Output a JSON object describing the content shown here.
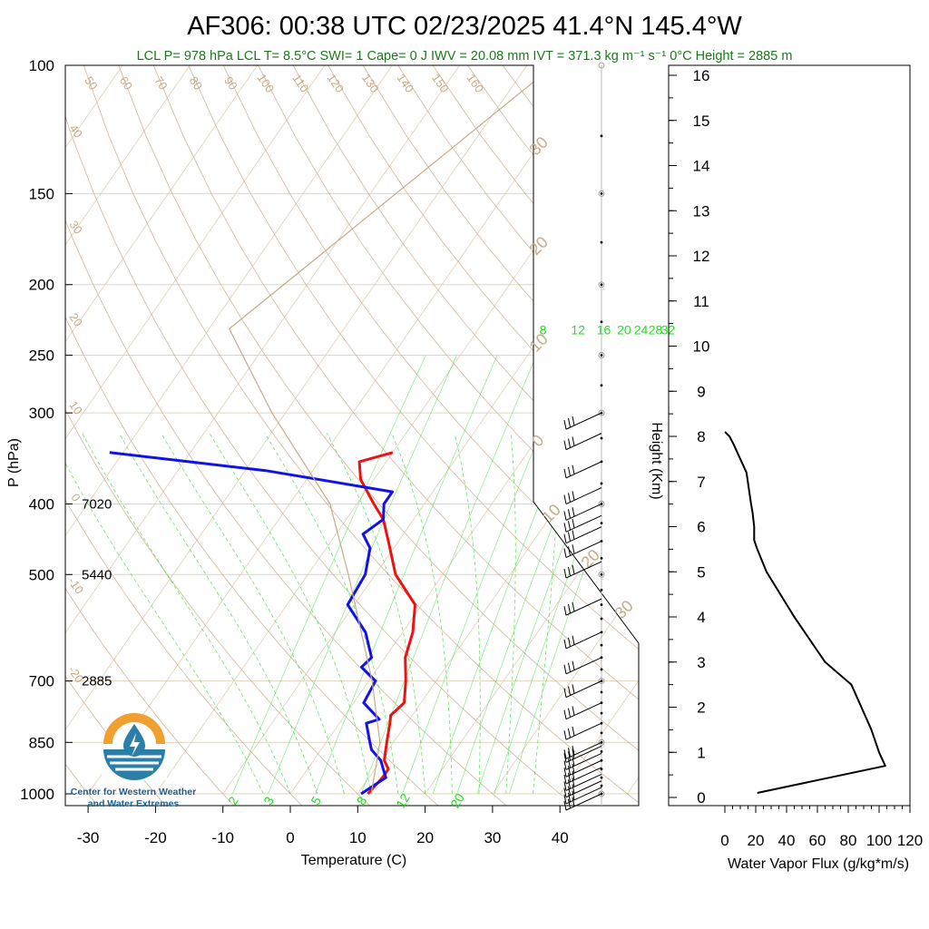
{
  "header": {
    "title": "AF306: 00:38 UTC 02/23/2025  41.4°N 145.4°W",
    "subtitle": "LCL P= 978 hPa  LCL T= 8.5°C  SWI= 1  Cape= 0 J  IWV = 20.08 mm  IVT = 371.3 kg m⁻¹ s⁻¹  0°C Height = 2885 m"
  },
  "logo": {
    "line1": "Center for Western Weather",
    "line2": "and Water Extremes"
  },
  "colors": {
    "temperature": "#ee1111",
    "dewpoint": "#1111ee",
    "dry_adiabat": "#c8aa86",
    "mixing_ratio": "#22dd22"
  },
  "chart_data": [
    {
      "type": "line",
      "chart": "skew-t",
      "xlabel": "Temperature (C)",
      "ylabel": "P (hPa)",
      "xlim": [
        -34,
        50
      ],
      "ylim": [
        1000,
        100
      ],
      "y_scale": "log",
      "x_ticks": [
        "-30",
        "-20",
        "-10",
        "0",
        "10",
        "20",
        "30",
        "40"
      ],
      "y_ticks": [
        "100",
        "150",
        "200",
        "250",
        "300",
        "400",
        "500",
        "700",
        "850",
        "1000"
      ],
      "height_labels": [
        {
          "p": 400,
          "text": "7020"
        },
        {
          "p": 500,
          "text": "5440"
        },
        {
          "p": 700,
          "text": "2885"
        }
      ],
      "mixing_ratio_labels": [
        "8",
        "12",
        "16",
        "20",
        "24",
        "28",
        "32"
      ],
      "mixing_ratio_labels_bottom": [
        "2",
        "3",
        "5",
        "8",
        "12",
        "20"
      ],
      "adiabat_labels_top": [
        "50",
        "60",
        "70",
        "80",
        "90",
        "100",
        "110",
        "120",
        "130",
        "140",
        "150",
        "160"
      ],
      "adiabat_labels_left": [
        "40",
        "30",
        "20",
        "10",
        "0",
        "-10",
        "-20"
      ],
      "adiabat_labels_right": [
        "30",
        "20",
        "10",
        "0",
        "10",
        "20",
        "30"
      ],
      "series": [
        {
          "name": "Temperature",
          "points": [
            [
              1000,
              11.5
            ],
            [
              950,
              12.0
            ],
            [
              925,
              12.0
            ],
            [
              900,
              10.5
            ],
            [
              850,
              9.0
            ],
            [
              800,
              7.5
            ],
            [
              780,
              6.8
            ],
            [
              750,
              7.5
            ],
            [
              700,
              5.5
            ],
            [
              650,
              3.0
            ],
            [
              600,
              1.5
            ],
            [
              550,
              -1.0
            ],
            [
              500,
              -7.0
            ],
            [
              450,
              -11.5
            ],
            [
              420,
              -14.5
            ],
            [
              400,
              -17.5
            ],
            [
              370,
              -22.0
            ],
            [
              350,
              -24.0
            ],
            [
              340,
              -20.0
            ]
          ]
        },
        {
          "name": "Dewpoint",
          "points": [
            [
              1000,
              10.5
            ],
            [
              950,
              12.5
            ],
            [
              920,
              11.0
            ],
            [
              900,
              10.0
            ],
            [
              870,
              7.5
            ],
            [
              850,
              6.5
            ],
            [
              800,
              4.0
            ],
            [
              790,
              5.5
            ],
            [
              750,
              1.5
            ],
            [
              700,
              1.0
            ],
            [
              670,
              -2.5
            ],
            [
              650,
              -2.0
            ],
            [
              600,
              -5.5
            ],
            [
              550,
              -11.0
            ],
            [
              500,
              -11.5
            ],
            [
              460,
              -13.5
            ],
            [
              440,
              -16.0
            ],
            [
              420,
              -14.5
            ],
            [
              400,
              -16.0
            ],
            [
              385,
              -16.0
            ],
            [
              360,
              -37.0
            ],
            [
              340,
              -62.0
            ]
          ]
        },
        {
          "name": "Parcel",
          "points": [
            [
              1000,
              12.0
            ],
            [
              850,
              8.0
            ],
            [
              700,
              0.5
            ],
            [
              500,
              -14.0
            ],
            [
              400,
              -24.0
            ],
            [
              300,
              -42.0
            ],
            [
              230,
              -57.0
            ],
            [
              100,
              -36.0
            ]
          ]
        }
      ],
      "wind_barbs_hpa": [
        1000,
        980,
        960,
        940,
        920,
        900,
        880,
        860,
        850,
        800,
        750,
        700,
        650,
        600,
        540,
        480,
        450,
        430,
        415,
        400,
        380,
        350,
        320,
        300
      ]
    },
    {
      "type": "line",
      "title": "",
      "xlabel": "Water Vapor Flux (g/kg*m/s)",
      "ylabel": "Height (Km)",
      "xlim": [
        0,
        120
      ],
      "ylim": [
        -0.3,
        16.4
      ],
      "x_ticks": [
        "0",
        "20",
        "40",
        "60",
        "80",
        "100",
        "120"
      ],
      "y_ticks": [
        "0",
        "1",
        "2",
        "3",
        "4",
        "5",
        "6",
        "7",
        "8",
        "9",
        "10",
        "11",
        "12",
        "13",
        "14",
        "15",
        "16"
      ],
      "x": [
        21,
        104,
        100,
        95,
        82,
        65,
        45,
        27,
        21,
        20,
        19,
        19,
        18,
        17,
        14,
        10,
        6,
        3,
        0
      ],
      "y": [
        0.1,
        0.7,
        1.0,
        1.5,
        2.5,
        3.0,
        4.0,
        5.0,
        5.5,
        5.6,
        5.7,
        6.0,
        6.3,
        6.5,
        7.2,
        7.5,
        7.8,
        8.0,
        8.1
      ]
    }
  ]
}
